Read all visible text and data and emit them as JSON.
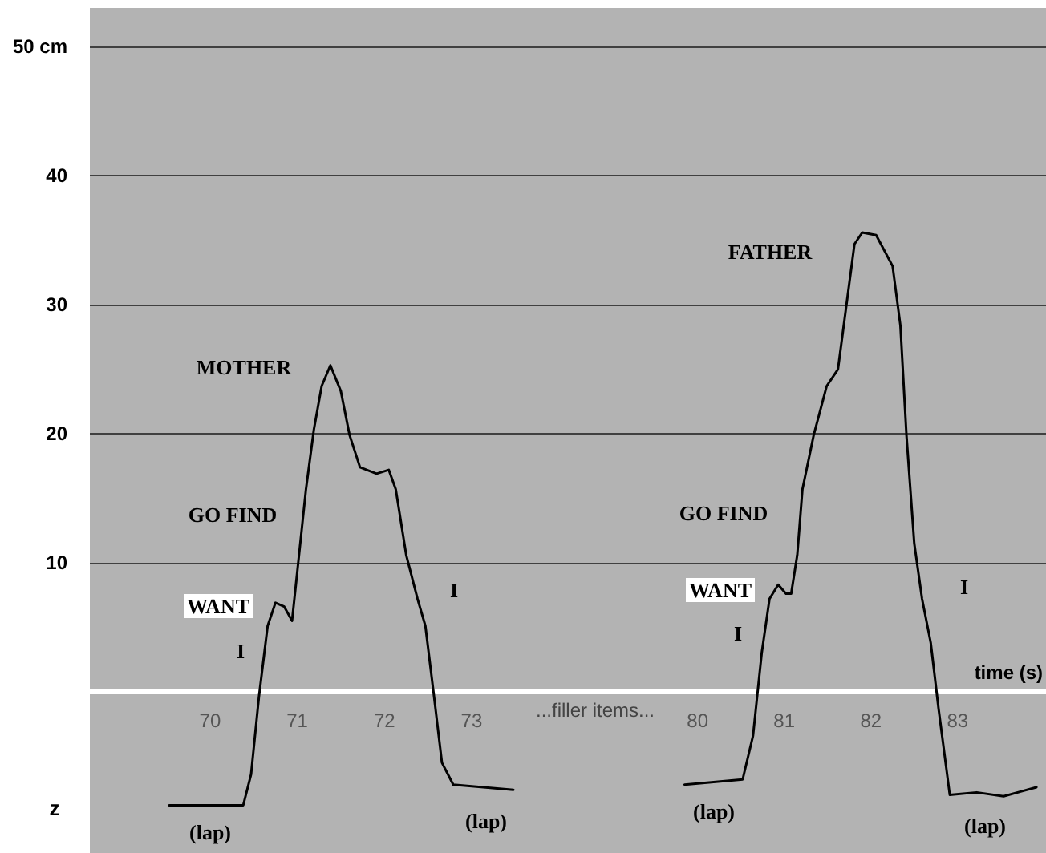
{
  "chart_data": [
    {
      "type": "line",
      "ylabel": "z",
      "xlim": [
        68.62,
        74.4
      ],
      "xticks": [
        70,
        71,
        72,
        73
      ],
      "ylim": [
        -12.5,
        53
      ],
      "yticks": [
        {
          "value": 50,
          "label": "50 cm"
        },
        40,
        30,
        20,
        10
      ],
      "grid": "y",
      "series": [
        {
          "color": "#000000",
          "x": [
            69.53,
            70.38,
            70.47,
            70.56,
            70.66,
            70.75,
            70.85,
            70.94,
            71.0,
            71.1,
            71.19,
            71.28,
            71.38,
            71.5,
            71.6,
            71.72,
            71.91,
            72.05,
            72.13,
            72.25,
            72.38,
            72.47,
            72.57,
            72.66,
            72.79,
            73.48
          ],
          "values": [
            -8.8,
            -8.8,
            -6.4,
            -0.4,
            5.1,
            6.9,
            6.6,
            5.5,
            9.3,
            15.7,
            20.3,
            23.7,
            25.3,
            23.3,
            19.9,
            17.4,
            16.9,
            17.2,
            15.7,
            10.6,
            7.2,
            5.1,
            -0.4,
            -5.5,
            -7.2,
            -7.6
          ]
        }
      ],
      "annotations": [
        "MOTHER",
        "GO FIND",
        "WANT",
        "I",
        "I",
        "(lap)",
        "(lap)"
      ]
    },
    {
      "type": "line",
      "xlabel": "time (s)",
      "xlim": [
        78.8,
        84.02
      ],
      "xticks": [
        80,
        81,
        82,
        83
      ],
      "ylim": [
        -12.5,
        53
      ],
      "yticks": [
        50,
        40,
        30,
        20,
        10
      ],
      "grid": "y",
      "tick_labels": "x",
      "series": [
        {
          "color": "#000000",
          "x": [
            79.85,
            80.52,
            80.64,
            80.74,
            80.83,
            80.93,
            81.02,
            81.08,
            81.15,
            81.21,
            81.34,
            81.49,
            81.62,
            81.71,
            81.81,
            81.9,
            82.06,
            82.25,
            82.34,
            82.41,
            82.5,
            82.59,
            82.69,
            82.78,
            82.91,
            83.22,
            83.53,
            83.91
          ],
          "values": [
            -7.2,
            -6.8,
            -3.4,
            3.0,
            7.2,
            8.3,
            7.6,
            7.6,
            10.6,
            15.7,
            19.9,
            23.7,
            25.0,
            29.6,
            34.7,
            35.6,
            35.4,
            33.0,
            28.4,
            19.9,
            11.5,
            7.2,
            3.8,
            -1.3,
            -8.0,
            -7.8,
            -8.1,
            -7.4
          ]
        }
      ],
      "annotations": [
        "...filler items...",
        "FATHER",
        "GO FIND",
        "WANT",
        "I",
        "I",
        "(lap)",
        "(lap)"
      ]
    }
  ]
}
